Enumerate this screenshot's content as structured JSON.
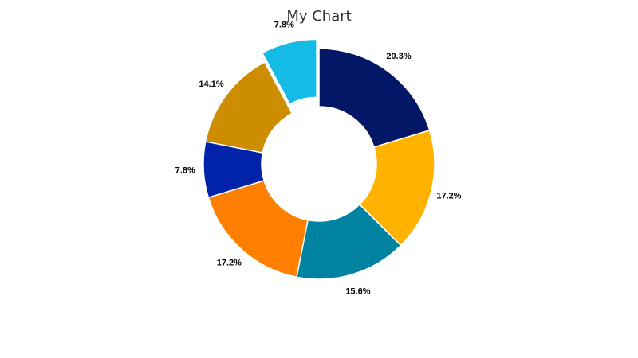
{
  "chart_data": {
    "type": "pie",
    "title": "My Chart",
    "donut": true,
    "legend": "none",
    "slices": [
      {
        "label": "20.3%",
        "value": 20.3,
        "color": "#021866"
      },
      {
        "label": "17.2%",
        "value": 17.2,
        "color": "#FFB300"
      },
      {
        "label": "15.6%",
        "value": 15.6,
        "color": "#0083A0"
      },
      {
        "label": "17.2%",
        "value": 17.2,
        "color": "#FF8000"
      },
      {
        "label": "7.8%",
        "value": 7.8,
        "color": "#0023AA"
      },
      {
        "label": "14.1%",
        "value": 14.1,
        "color": "#CC8E00"
      },
      {
        "label": "7.8%",
        "value": 7.8,
        "color": "#14BBE6"
      }
    ]
  }
}
